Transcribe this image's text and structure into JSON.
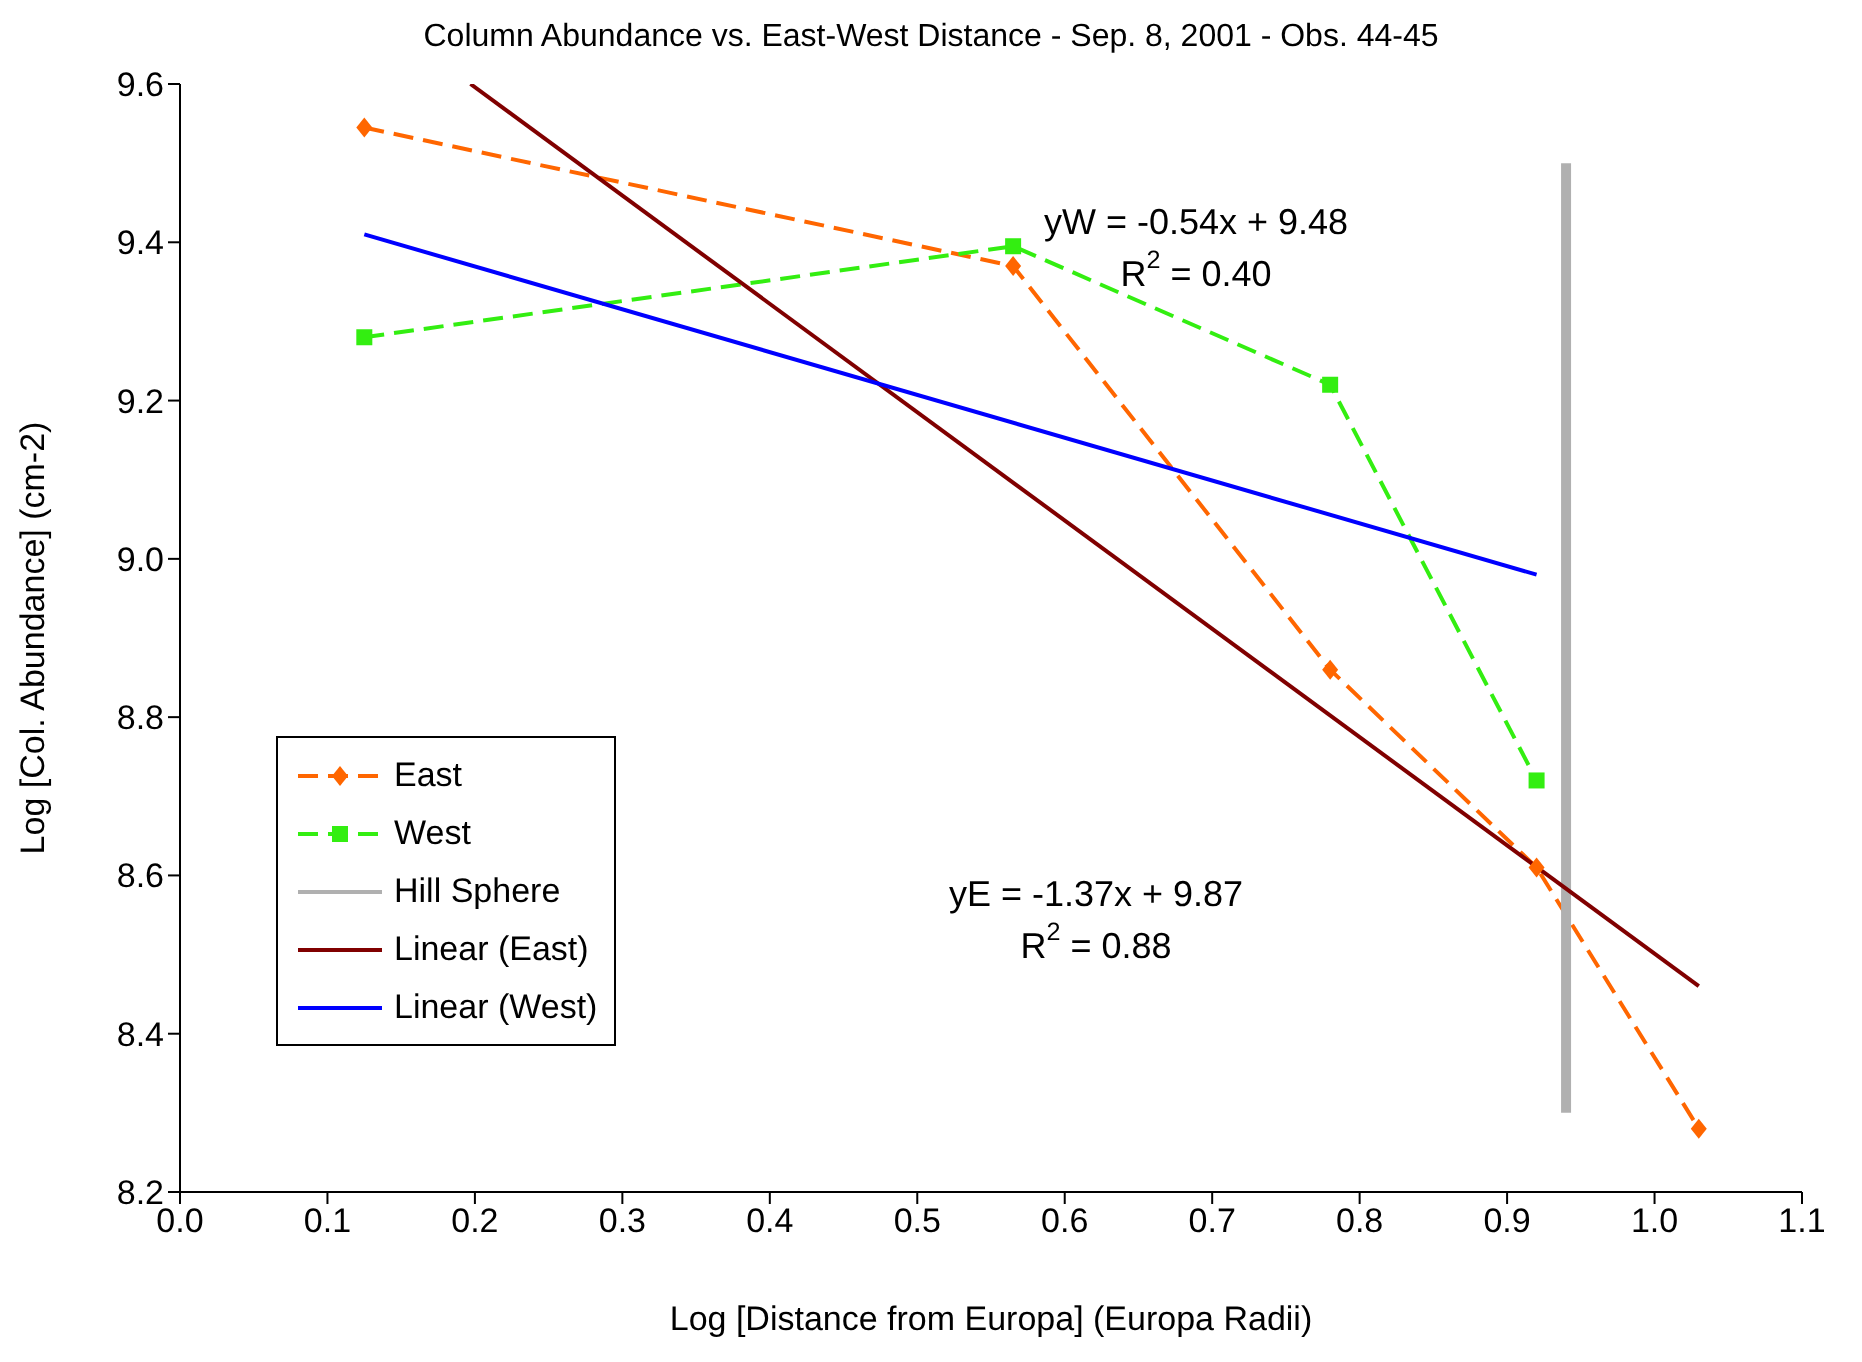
{
  "chart_data": {
    "type": "line",
    "title": "Column Abundance vs. East-West Distance - Sep. 8, 2001 - Obs. 44-45",
    "xlabel": "Log [Distance from Europa] (Europa Radii)",
    "ylabel": "Log [Col. Abundance] (cm-2)",
    "xlim": [
      0,
      1.1
    ],
    "xticks": [
      {
        "value": 0,
        "label": "0.0"
      },
      0.1,
      0.2,
      0.3,
      0.4,
      0.5,
      0.6,
      0.7,
      0.8,
      0.9,
      {
        "value": 1,
        "label": "1.0"
      },
      1.1
    ],
    "ylim": [
      8.2,
      9.6
    ],
    "yticks": [
      {
        "value": 8.2,
        "label": "8.2"
      },
      {
        "value": 8.4,
        "label": "8.4"
      },
      {
        "value": 8.6,
        "label": "8.6"
      },
      {
        "value": 8.8,
        "label": "8.8"
      },
      {
        "value": 9,
        "label": "9.0"
      },
      {
        "value": 9.2,
        "label": "9.2"
      },
      {
        "value": 9.4,
        "label": "9.4"
      },
      {
        "value": 9.6,
        "label": "9.6"
      }
    ],
    "grid": false,
    "legend": "left",
    "series": [
      {
        "name": "East",
        "color": "#ff6600",
        "x": [
          0.125,
          0.565,
          0.78,
          0.92,
          1.03
        ],
        "values": [
          9.545,
          9.37,
          8.86,
          8.61,
          8.28
        ],
        "marker": "diamond",
        "line_style": "dashed"
      },
      {
        "name": "West",
        "color": "#33ee11",
        "x": [
          0.125,
          0.565,
          0.78,
          0.92
        ],
        "values": [
          9.28,
          9.395,
          9.22,
          8.72
        ],
        "marker": "square",
        "line_style": "dashed"
      },
      {
        "name": "Hill Sphere",
        "color": "#b0b0b0",
        "x": [
          0.94,
          0.94
        ],
        "values": [
          8.3,
          9.5
        ],
        "marker": "none",
        "line_style": "solid"
      },
      {
        "name": "Linear (East)",
        "color": "#800000",
        "x": [
          0.197,
          1.03
        ],
        "values": [
          9.6,
          8.46
        ],
        "marker": "none",
        "line_style": "solid"
      },
      {
        "name": "Linear (West)",
        "color": "#0000ff",
        "x": [
          0.125,
          0.92
        ],
        "values": [
          9.41,
          8.98
        ],
        "marker": "none",
        "line_style": "solid"
      }
    ],
    "annotations": [
      "yW = -0.54x + 9.48",
      "R$^{2}$ = 0.40",
      "yE = -1.37x + 9.87",
      "R$^{2}$ = 0.88"
    ]
  }
}
